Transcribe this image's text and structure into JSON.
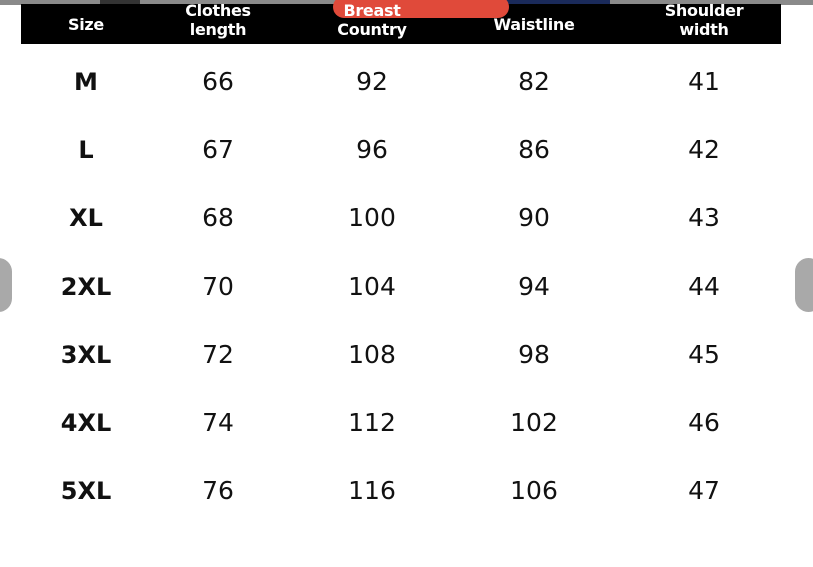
{
  "headers": [
    "Size",
    "Clothes\nlength",
    "Breast\nCountry",
    "Waistline",
    "Shoulder\nwidth"
  ],
  "rows": [
    [
      "M",
      "66",
      "92",
      "82",
      "41"
    ],
    [
      "L",
      "67",
      "96",
      "86",
      "42"
    ],
    [
      "XL",
      "68",
      "100",
      "90",
      "43"
    ],
    [
      "2XL",
      "70",
      "104",
      "94",
      "44"
    ],
    [
      "3XL",
      "72",
      "108",
      "98",
      "45"
    ],
    [
      "4XL",
      "74",
      "112",
      "102",
      "46"
    ],
    [
      "5XL",
      "76",
      "116",
      "106",
      "47"
    ]
  ],
  "colors": {
    "header_bg": "#000000",
    "header_text": "#ffffff",
    "accent_pill": "#e04a3a",
    "nav_arrow": "#a9a9a9"
  },
  "nav": {
    "prev_icon": "chevron-left-icon",
    "next_icon": "chevron-right-icon"
  }
}
